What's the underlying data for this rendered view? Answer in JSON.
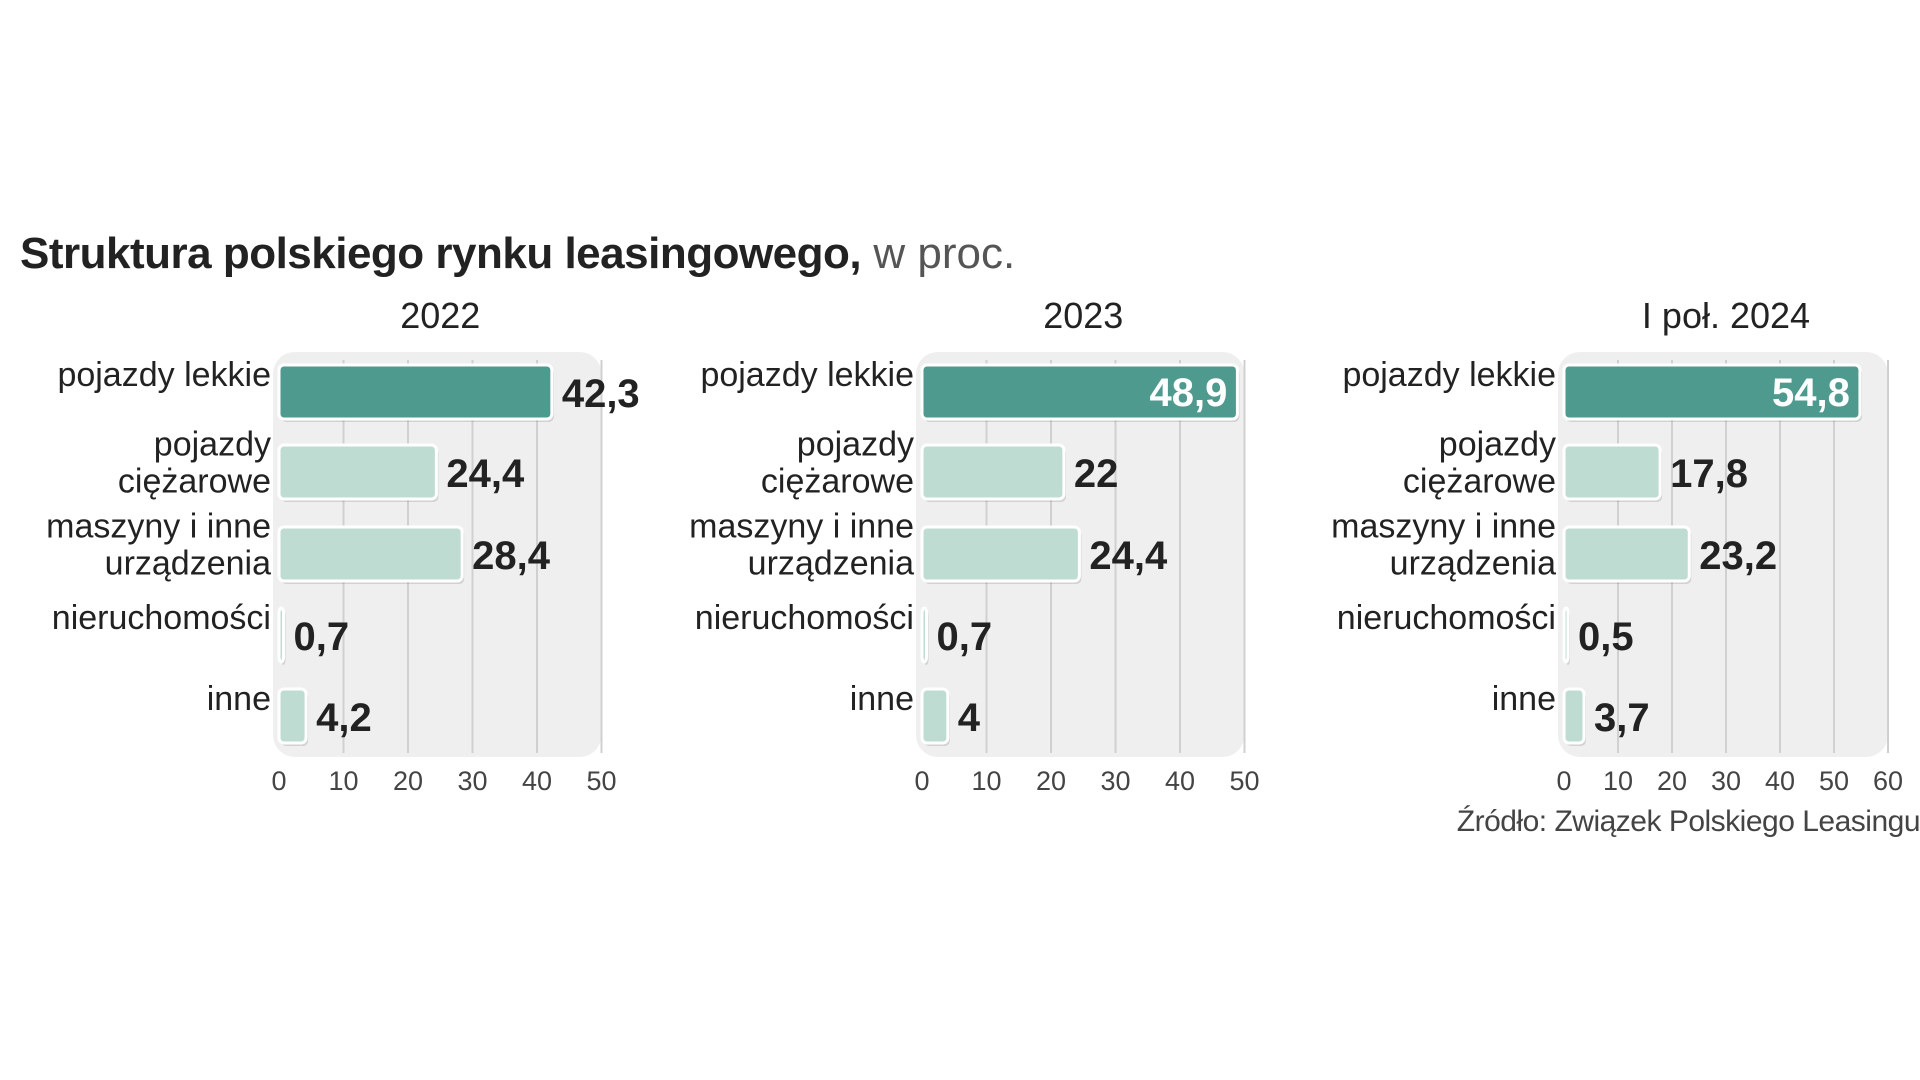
{
  "header": {
    "title": "Struktura polskiego rynku leasingowego,",
    "unit": "w proc."
  },
  "source": "Źródło: Związek Polskiego Leasingu",
  "colors": {
    "dark_bar": "#4e9a8e",
    "light_bar": "#bfdcd3",
    "panel": "#efefef",
    "grid": "#d0d0d0",
    "text": "#222222",
    "value_on_bar": "#ffffff"
  },
  "chart_data": [
    {
      "type": "bar",
      "orientation": "horizontal",
      "title": "2022",
      "categories": [
        "pojazdy lekkie",
        "pojazdy ciężarowe",
        "maszyny i inne urządzenia",
        "nieruchomości",
        "inne"
      ],
      "category_lines": [
        [
          "pojazdy lekkie"
        ],
        [
          "pojazdy",
          "ciężarowe"
        ],
        [
          "maszyny i inne",
          "urządzenia"
        ],
        [
          "nieruchomości"
        ],
        [
          "inne"
        ]
      ],
      "values": [
        42.3,
        24.4,
        28.4,
        0.7,
        4.2
      ],
      "value_labels": [
        "42,3",
        "24,4",
        "28,4",
        "0,7",
        "4,2"
      ],
      "xlim": [
        0,
        50
      ],
      "ticks": [
        0,
        10,
        20,
        30,
        40,
        50
      ],
      "highlight_index": 0,
      "highlight_label_inside": false,
      "grid": true
    },
    {
      "type": "bar",
      "orientation": "horizontal",
      "title": "2023",
      "categories": [
        "pojazdy lekkie",
        "pojazdy ciężarowe",
        "maszyny i inne urządzenia",
        "nieruchomości",
        "inne"
      ],
      "category_lines": [
        [
          "pojazdy lekkie"
        ],
        [
          "pojazdy",
          "ciężarowe"
        ],
        [
          "maszyny i inne",
          "urządzenia"
        ],
        [
          "nieruchomości"
        ],
        [
          "inne"
        ]
      ],
      "values": [
        48.9,
        22,
        24.4,
        0.7,
        4
      ],
      "value_labels": [
        "48,9",
        "22",
        "24,4",
        "0,7",
        "4"
      ],
      "xlim": [
        0,
        50
      ],
      "ticks": [
        0,
        10,
        20,
        30,
        40,
        50
      ],
      "highlight_index": 0,
      "highlight_label_inside": true,
      "grid": true
    },
    {
      "type": "bar",
      "orientation": "horizontal",
      "title": "I poł. 2024",
      "categories": [
        "pojazdy lekkie",
        "pojazdy ciężarowe",
        "maszyny i inne urządzenia",
        "nieruchomości",
        "inne"
      ],
      "category_lines": [
        [
          "pojazdy lekkie"
        ],
        [
          "pojazdy",
          "ciężarowe"
        ],
        [
          "maszyny i inne",
          "urządzenia"
        ],
        [
          "nieruchomości"
        ],
        [
          "inne"
        ]
      ],
      "values": [
        54.8,
        17.8,
        23.2,
        0.5,
        3.7
      ],
      "value_labels": [
        "54,8",
        "17,8",
        "23,2",
        "0,5",
        "3,7"
      ],
      "xlim": [
        0,
        60
      ],
      "ticks": [
        0,
        10,
        20,
        30,
        40,
        50,
        60
      ],
      "highlight_index": 0,
      "highlight_label_inside": true,
      "grid": true
    }
  ]
}
